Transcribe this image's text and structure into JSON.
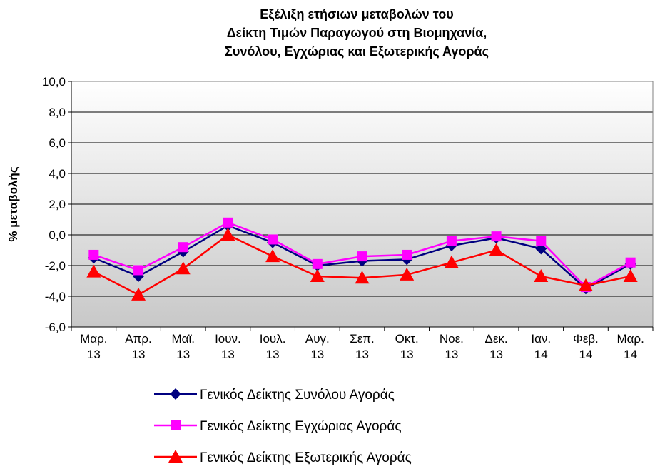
{
  "chart_data": {
    "type": "line",
    "title": [
      "Εξέλιξη ετήσιων μεταβολών του",
      "Δείκτη Τιμών Παραγωγού στη Βιομηχανία,",
      "Συνόλου, Εγχώριας και Εξωτερικής Αγοράς"
    ],
    "y_label": "% μεταβολής",
    "categories": [
      "Μαρ. 13",
      "Απρ. 13",
      "Μαϊ. 13",
      "Ιουν. 13",
      "Ιουλ. 13",
      "Αυγ. 13",
      "Σεπ. 13",
      "Οκτ. 13",
      "Νοε. 13",
      "Δεκ. 13",
      "Ιαν. 14",
      "Φεβ. 14",
      "Μαρ. 14"
    ],
    "series": [
      {
        "name": "Γενικός Δείκτης Συνόλου Αγοράς",
        "color": "#000080",
        "marker": "diamond",
        "values": [
          -1.5,
          -2.7,
          -1.1,
          0.6,
          -0.5,
          -2.0,
          -1.7,
          -1.6,
          -0.7,
          -0.2,
          -0.9,
          -3.5,
          -1.9
        ]
      },
      {
        "name": "Γενικός Δείκτης Εγχώριας Αγοράς",
        "color": "#ff00ff",
        "marker": "square",
        "values": [
          -1.3,
          -2.3,
          -0.8,
          0.8,
          -0.3,
          -1.9,
          -1.4,
          -1.3,
          -0.4,
          -0.1,
          -0.4,
          -3.4,
          -1.8
        ]
      },
      {
        "name": "Γενικός Δείκτης Εξωτερικής Αγοράς",
        "color": "#ff0000",
        "marker": "triangle",
        "values": [
          -2.4,
          -3.9,
          -2.2,
          0.0,
          -1.4,
          -2.7,
          -2.8,
          -2.6,
          -1.8,
          -1.0,
          -2.7,
          -3.3,
          -2.7
        ]
      }
    ],
    "ylim": [
      -6,
      10
    ],
    "yticks": [
      {
        "value": -6,
        "label": "-6,0"
      },
      {
        "value": -4,
        "label": "-4,0"
      },
      {
        "value": -2,
        "label": "-2,0"
      },
      {
        "value": 0,
        "label": "0,0"
      },
      {
        "value": 2,
        "label": "2,0"
      },
      {
        "value": 4,
        "label": "4,0"
      },
      {
        "value": 6,
        "label": "6,0"
      },
      {
        "value": 8,
        "label": "8,0"
      },
      {
        "value": 10,
        "label": "10,0"
      }
    ],
    "grid": true
  }
}
